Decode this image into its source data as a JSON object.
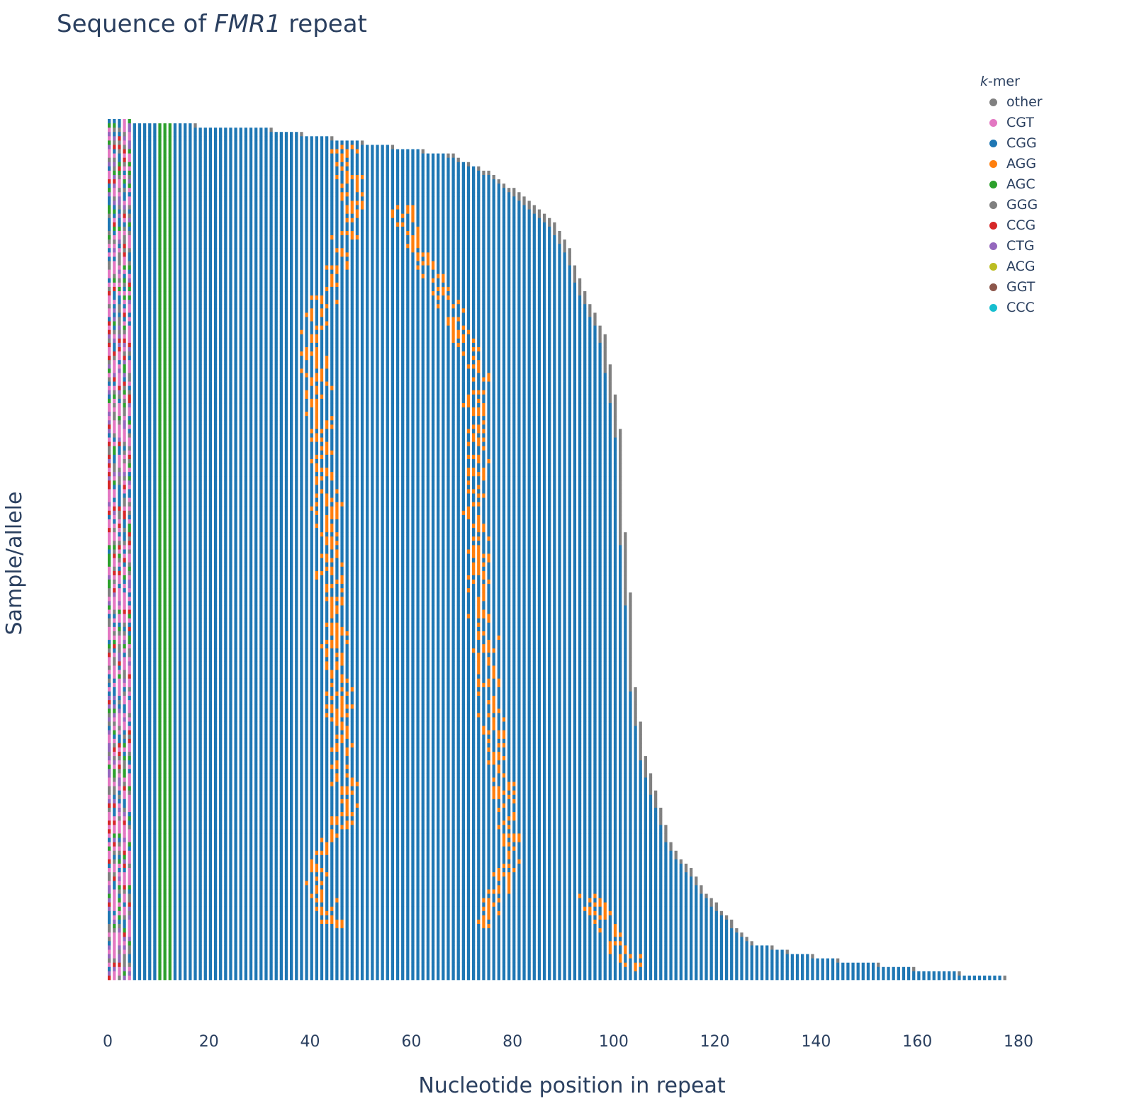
{
  "title": {
    "prefix": "Sequence of ",
    "gene": "FMR1",
    "suffix": " repeat"
  },
  "chart_data": {
    "type": "heatmap",
    "title": "Sequence of FMR1 repeat",
    "xlabel": "Nucleotide position in repeat",
    "ylabel": "Sample/allele",
    "xlim": [
      0,
      180
    ],
    "xticks": [
      0,
      20,
      40,
      60,
      80,
      100,
      120,
      140,
      160,
      180
    ],
    "yticks_shown": false,
    "grid": false,
    "legend_title_prefix": "k",
    "legend_title_suffix": "-mer",
    "legend_position": "top-right",
    "legend": [
      {
        "name": "other",
        "color": "#808080"
      },
      {
        "name": "CGT",
        "color": "#e377c2"
      },
      {
        "name": "CGG",
        "color": "#1f77b4"
      },
      {
        "name": "AGG",
        "color": "#ff7f0e"
      },
      {
        "name": "AGC",
        "color": "#2ca02c"
      },
      {
        "name": "GGG",
        "color": "#7f7f7f"
      },
      {
        "name": "CCG",
        "color": "#d62728"
      },
      {
        "name": "CTG",
        "color": "#9467bd"
      },
      {
        "name": "ACG",
        "color": "#bcbd22"
      },
      {
        "name": "GGT",
        "color": "#8c564b"
      },
      {
        "name": "CCC",
        "color": "#17becf"
      }
    ],
    "repeat_length_profile": {
      "sample_fraction": [
        0,
        0.004,
        0.008,
        0.04,
        0.06,
        0.08,
        0.1,
        0.12,
        0.15,
        0.2,
        0.25,
        0.32,
        0.4,
        0.48,
        0.55,
        0.62,
        0.66,
        0.7,
        0.74,
        0.78,
        0.8,
        0.82,
        0.84,
        0.86,
        0.88,
        0.9,
        0.92,
        0.94,
        0.96,
        0.97,
        0.98,
        0.99,
        1.0
      ],
      "repeat_end_position": [
        5,
        13,
        30,
        68,
        75,
        80,
        84,
        88,
        91,
        94,
        98,
        100,
        102,
        102,
        103,
        104,
        104,
        105,
        106,
        108,
        109,
        110,
        111,
        113,
        116,
        118,
        121,
        124,
        128,
        135,
        145,
        160,
        178
      ]
    },
    "interruption_bands": [
      {
        "kmer": "AGG",
        "sample_fraction": [
          0.0,
          0.1,
          0.25,
          0.45,
          0.65,
          0.8,
          0.88,
          0.94
        ],
        "position": [
          45,
          49,
          40,
          43,
          45,
          47,
          40,
          45
        ]
      },
      {
        "kmer": "AGG",
        "sample_fraction": [
          0.1,
          0.2,
          0.3,
          0.45,
          0.6,
          0.75,
          0.85,
          0.94
        ],
        "position": [
          57,
          66,
          73,
          72,
          74,
          77,
          80,
          74
        ]
      },
      {
        "kmer": "AGG",
        "sample_fraction": [
          0.9,
          0.95,
          0.99
        ],
        "position": [
          94,
          100,
          104
        ]
      },
      {
        "kmer": "CGT",
        "sample_fraction": [
          0.0,
          1.0
        ],
        "position": [
          3,
          3
        ]
      },
      {
        "kmer": "AGC",
        "sample_fraction": [
          0.0,
          1.0
        ],
        "position": [
          11,
          11
        ]
      }
    ]
  }
}
